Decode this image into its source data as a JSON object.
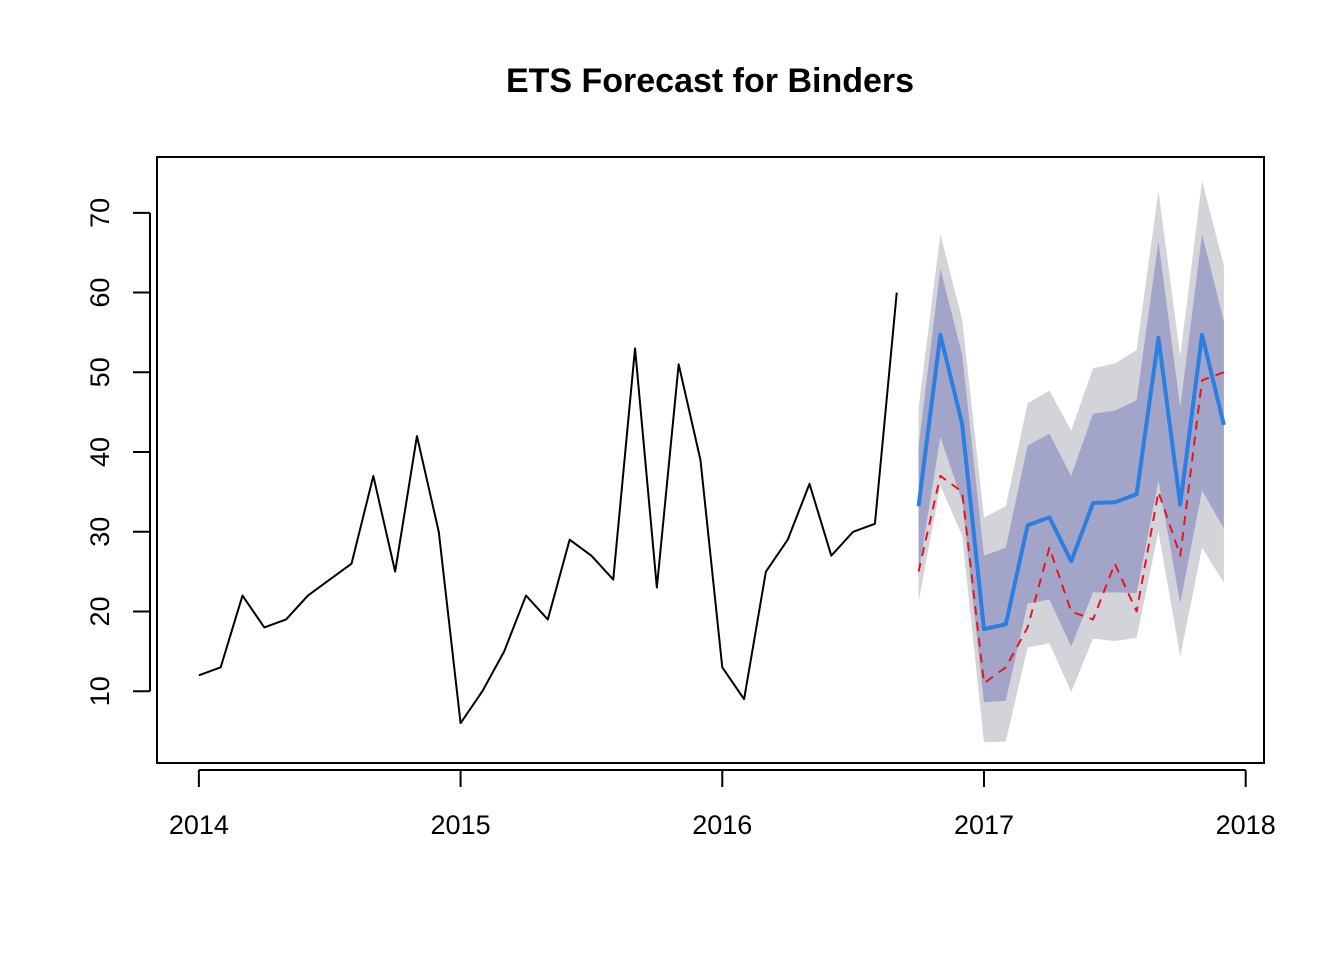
{
  "chart_data": {
    "type": "line",
    "title": "ETS Forecast for Binders",
    "xlabel": "",
    "ylabel": "",
    "xlim": [
      2013.84,
      2018.07
    ],
    "ylim": [
      1.0,
      77.0
    ],
    "x_ticks": [
      2014,
      2015,
      2016,
      2017,
      2018
    ],
    "y_ticks": [
      10,
      20,
      30,
      40,
      50,
      60,
      70
    ],
    "grid": false,
    "legend": "none",
    "colors": {
      "history": "#000000",
      "forecast": "#2B7FE0",
      "pi80": "#A3A5C8",
      "pi95": "#D3D3DA",
      "actual": "#E8141E"
    },
    "history": {
      "start": "2014-01",
      "values": [
        12,
        13,
        22,
        18,
        19,
        22,
        24,
        26,
        37,
        25,
        42,
        30,
        6,
        10,
        15,
        22,
        19,
        29,
        27,
        24,
        53,
        23,
        51,
        39,
        13,
        9,
        25,
        29,
        36,
        27,
        30,
        31,
        60
      ]
    },
    "forecast": {
      "start": "2016-10",
      "mean": [
        33.2,
        54.7,
        43.5,
        17.8,
        18.4,
        30.8,
        31.8,
        26.3,
        33.6,
        33.7,
        34.7,
        54.3,
        33.4,
        54.7,
        43.4
      ],
      "lo80": [
        24.8,
        41.9,
        33.8,
        8.6,
        8.8,
        21.0,
        21.5,
        15.6,
        22.4,
        22.4,
        22.3,
        36.4,
        21.0,
        35.2,
        30.4
      ],
      "hi80": [
        40.7,
        63.0,
        52.2,
        27.0,
        28.0,
        40.8,
        42.3,
        37.0,
        44.8,
        45.2,
        46.5,
        66.4,
        45.6,
        67.3,
        56.4
      ],
      "lo95": [
        21.2,
        35.8,
        29.5,
        3.6,
        3.7,
        15.5,
        16.0,
        9.9,
        16.6,
        16.3,
        16.7,
        30.0,
        14.4,
        28.0,
        23.6
      ],
      "hi95": [
        45.5,
        67.3,
        56.6,
        31.8,
        33.2,
        46.1,
        47.7,
        42.7,
        50.5,
        51.1,
        52.8,
        72.7,
        52.0,
        74.0,
        63.4
      ]
    },
    "actual": {
      "start": "2016-10",
      "values": [
        25,
        37,
        35,
        11,
        13,
        18,
        28,
        20,
        19,
        26,
        20,
        35,
        27,
        49,
        50
      ]
    }
  }
}
